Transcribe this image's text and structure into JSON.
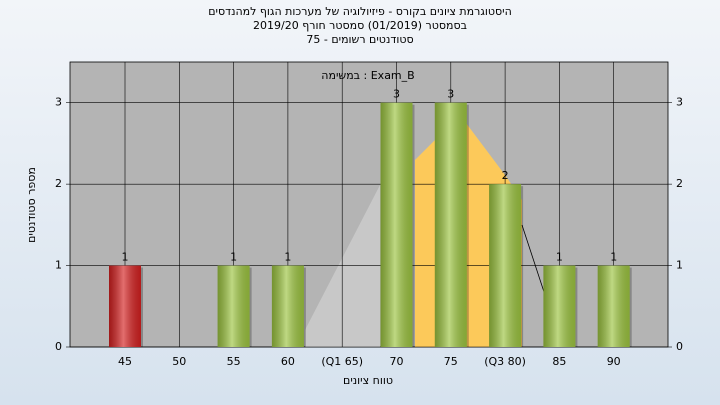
{
  "chart_data": {
    "type": "bar",
    "title": "היסטוגרמת ציונים בקורס - פיזיולוגיה של מערכות הגוף למהנדסים",
    "subtitle": [
      "בסמסטר  (01/2019)  סמסטר חורף 2019/20",
      "סטודנטים רשומים - 75"
    ],
    "annotation": "במשימה : Exam_B",
    "x_label": "טווח ציונים",
    "y_label": "מספר סטודנטים",
    "categories": [
      "45",
      "50",
      "55",
      "60",
      "(Q1 65)",
      "70",
      "75",
      "(Q3 80)",
      "85",
      "90"
    ],
    "values": [
      1,
      null,
      1,
      1,
      null,
      3,
      3,
      2,
      1,
      1
    ],
    "colors": [
      "#d42020",
      null,
      "#9cc440",
      "#9cc440",
      null,
      "#9cc440",
      "#9cc440",
      "#9cc440",
      "#9cc440",
      "#9cc440"
    ],
    "ylim": [
      0,
      3.5
    ],
    "yticks": [
      0,
      1,
      2,
      3
    ],
    "grid": true
  }
}
